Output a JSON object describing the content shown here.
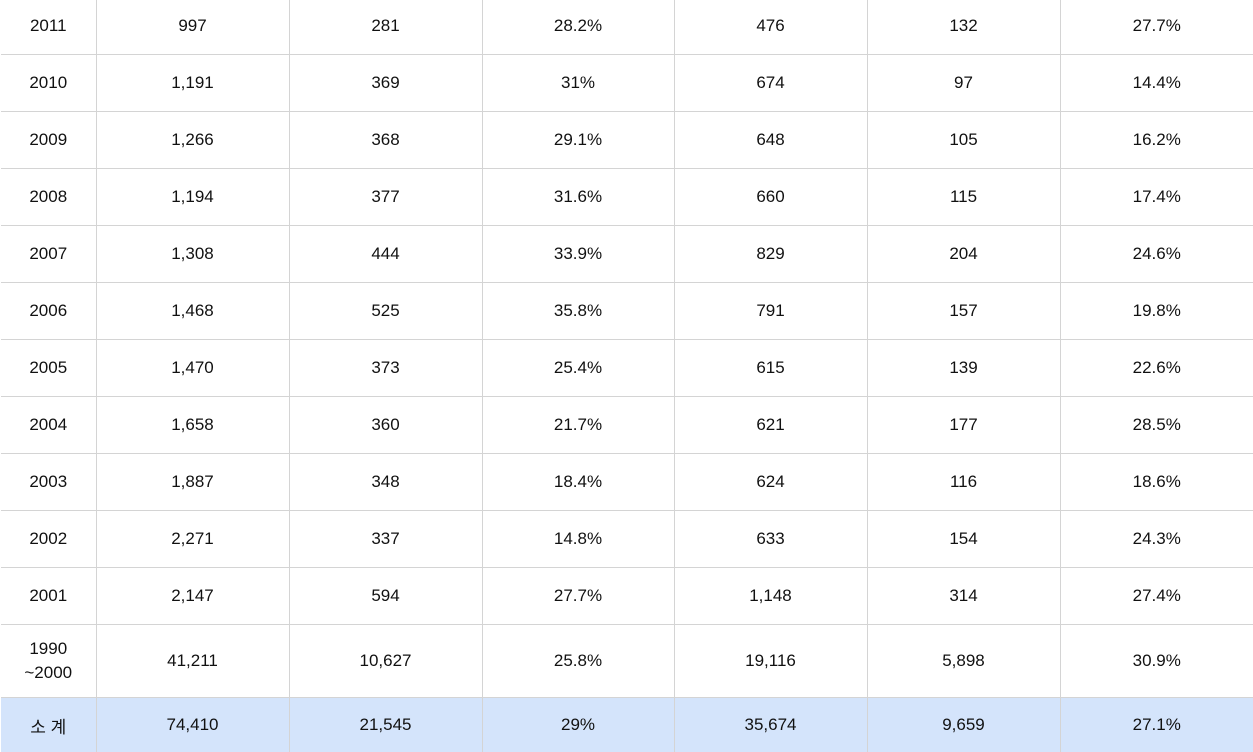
{
  "rows": [
    {
      "year": "2011",
      "c1": "997",
      "c2": "281",
      "c3": "28.2%",
      "c4": "476",
      "c5": "132",
      "c6": "27.7%"
    },
    {
      "year": "2010",
      "c1": "1,191",
      "c2": "369",
      "c3": "31%",
      "c4": "674",
      "c5": "97",
      "c6": "14.4%"
    },
    {
      "year": "2009",
      "c1": "1,266",
      "c2": "368",
      "c3": "29.1%",
      "c4": "648",
      "c5": "105",
      "c6": "16.2%"
    },
    {
      "year": "2008",
      "c1": "1,194",
      "c2": "377",
      "c3": "31.6%",
      "c4": "660",
      "c5": "115",
      "c6": "17.4%"
    },
    {
      "year": "2007",
      "c1": "1,308",
      "c2": "444",
      "c3": "33.9%",
      "c4": "829",
      "c5": "204",
      "c6": "24.6%"
    },
    {
      "year": "2006",
      "c1": "1,468",
      "c2": "525",
      "c3": "35.8%",
      "c4": "791",
      "c5": "157",
      "c6": "19.8%"
    },
    {
      "year": "2005",
      "c1": "1,470",
      "c2": "373",
      "c3": "25.4%",
      "c4": "615",
      "c5": "139",
      "c6": "22.6%"
    },
    {
      "year": "2004",
      "c1": "1,658",
      "c2": "360",
      "c3": "21.7%",
      "c4": "621",
      "c5": "177",
      "c6": "28.5%"
    },
    {
      "year": "2003",
      "c1": "1,887",
      "c2": "348",
      "c3": "18.4%",
      "c4": "624",
      "c5": "116",
      "c6": "18.6%"
    },
    {
      "year": "2002",
      "c1": "2,271",
      "c2": "337",
      "c3": "14.8%",
      "c4": "633",
      "c5": "154",
      "c6": "24.3%"
    },
    {
      "year": "2001",
      "c1": "2,147",
      "c2": "594",
      "c3": "27.7%",
      "c4": "1,148",
      "c5": "314",
      "c6": "27.4%"
    },
    {
      "year": "1990\n~2000",
      "c1": "41,211",
      "c2": "10,627",
      "c3": "25.8%",
      "c4": "19,116",
      "c5": "5,898",
      "c6": "30.9%"
    }
  ],
  "total": {
    "label": "소 계",
    "c1": "74,410",
    "c2": "21,545",
    "c3": "29%",
    "c4": "35,674",
    "c5": "9,659",
    "c6": "27.1%"
  },
  "colors": {
    "total_row_bg": "#d4e4fb",
    "border": "#d4d4d4"
  }
}
